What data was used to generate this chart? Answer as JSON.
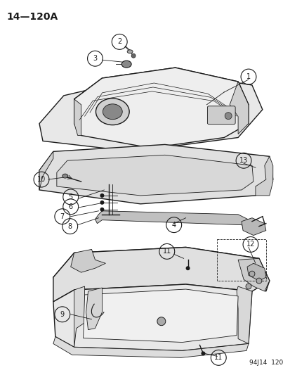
{
  "title_text": "14—120A",
  "footer_text": "94J14  120",
  "bg_color": "#ffffff",
  "line_color": "#1a1a1a",
  "gray_light": "#e8e8e8",
  "gray_mid": "#d0d0d0",
  "gray_dark": "#b0b0b0"
}
